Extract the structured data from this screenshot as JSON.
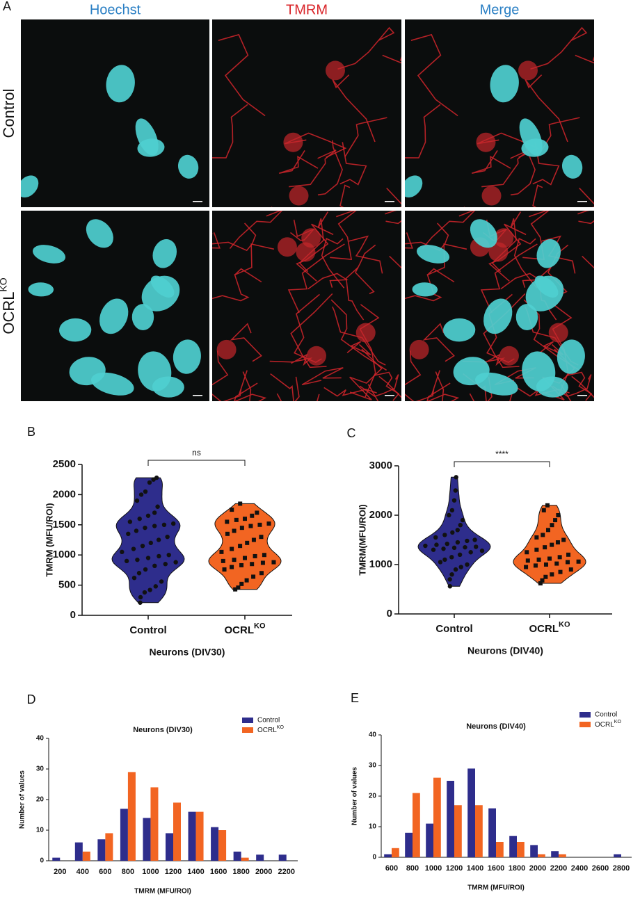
{
  "figure": {
    "panel_a": {
      "letter": "A",
      "columns": [
        "Hoechst",
        "TMRM",
        "Merge"
      ],
      "rows": [
        "Control",
        {
          "text": "OCRL",
          "sup": "KO"
        }
      ]
    }
  },
  "chart_data": [
    {
      "type": "violin",
      "panel": "B",
      "categories": [
        "Control",
        {
          "text": "OCRL",
          "sup": "KO"
        }
      ],
      "y_label": "TMRM (MFU/ROI)",
      "x_label": "Neurons (DIV30)",
      "significance": "ns",
      "ylim": [
        0,
        2500
      ],
      "yticks": [
        0,
        500,
        1000,
        1500,
        2000,
        2500
      ],
      "series": [
        {
          "color": "#2e2d8c",
          "marker": "circle",
          "values": [
            210,
            300,
            380,
            420,
            480,
            560,
            620,
            700,
            760,
            820,
            850,
            880,
            900,
            920,
            950,
            980,
            1000,
            1050,
            1100,
            1150,
            1200,
            1250,
            1300,
            1350,
            1400,
            1450,
            1480,
            1500,
            1520,
            1550,
            1600,
            1650,
            1700,
            1800,
            1900,
            2000,
            2050,
            2200,
            2250,
            2280
          ]
        },
        {
          "color": "#f26522",
          "marker": "square",
          "values": [
            430,
            460,
            520,
            580,
            640,
            700,
            760,
            800,
            830,
            850,
            870,
            880,
            900,
            920,
            950,
            980,
            1000,
            1050,
            1100,
            1150,
            1200,
            1250,
            1300,
            1350,
            1400,
            1450,
            1480,
            1500,
            1520,
            1550,
            1580,
            1600,
            1650,
            1700,
            1750,
            1850
          ]
        }
      ]
    },
    {
      "type": "violin",
      "panel": "C",
      "categories": [
        "Control",
        {
          "text": "OCRL",
          "sup": "KO"
        }
      ],
      "y_label": "TMRM(MFU/ROI)",
      "x_label": "Neurons (DIV40)",
      "significance": "****",
      "ylim": [
        0,
        3000
      ],
      "yticks": [
        0,
        1000,
        2000,
        3000
      ],
      "series": [
        {
          "color": "#2e2d8c",
          "marker": "circle",
          "values": [
            560,
            700,
            800,
            900,
            950,
            1000,
            1050,
            1100,
            1150,
            1200,
            1250,
            1280,
            1300,
            1320,
            1340,
            1350,
            1360,
            1380,
            1400,
            1420,
            1450,
            1480,
            1500,
            1550,
            1600,
            1650,
            1700,
            1800,
            1900,
            2000,
            2100,
            2300,
            2500,
            2770
          ]
        },
        {
          "color": "#f26522",
          "marker": "square",
          "values": [
            620,
            680,
            750,
            800,
            850,
            900,
            950,
            980,
            1000,
            1020,
            1050,
            1060,
            1080,
            1100,
            1120,
            1150,
            1200,
            1250,
            1300,
            1350,
            1400,
            1450,
            1500,
            1550,
            1600,
            1700,
            1800,
            1900,
            2000,
            2100,
            2200
          ]
        }
      ]
    },
    {
      "type": "bar",
      "panel": "D",
      "title": "Neurons (DIV30)",
      "x_label": "TMRM (MFU/ROI)",
      "y_label": "Number of values",
      "categories": [
        "200",
        "400",
        "600",
        "800",
        "1000",
        "1200",
        "1400",
        "1600",
        "1800",
        "2000",
        "2200"
      ],
      "ylim": [
        0,
        40
      ],
      "yticks": [
        0,
        10,
        20,
        30,
        40
      ],
      "series": [
        {
          "name": "Control",
          "color": "#2e2d8c",
          "values": [
            1,
            6,
            7,
            17,
            14,
            9,
            16,
            11,
            3,
            2,
            2
          ]
        },
        {
          "name": {
            "text": "OCRL",
            "sup": "KO"
          },
          "color": "#f26522",
          "values": [
            0,
            3,
            9,
            29,
            24,
            19,
            16,
            10,
            1,
            0,
            0
          ]
        }
      ]
    },
    {
      "type": "bar",
      "panel": "E",
      "title": "Neurons (DIV40)",
      "x_label": "TMRM (MFU/ROI)",
      "y_label": "Number of values",
      "categories": [
        "600",
        "800",
        "1000",
        "1200",
        "1400",
        "1600",
        "1800",
        "2000",
        "2200",
        "2400",
        "2600",
        "2800"
      ],
      "ylim": [
        0,
        40
      ],
      "yticks": [
        0,
        10,
        20,
        30,
        40
      ],
      "series": [
        {
          "name": "Control",
          "color": "#2e2d8c",
          "values": [
            1,
            8,
            11,
            25,
            29,
            16,
            7,
            4,
            2,
            0,
            0,
            1
          ]
        },
        {
          "name": {
            "text": "OCRL",
            "sup": "KO"
          },
          "color": "#f26522",
          "values": [
            3,
            21,
            26,
            17,
            17,
            5,
            5,
            1,
            1,
            0,
            0,
            0
          ]
        }
      ]
    }
  ]
}
